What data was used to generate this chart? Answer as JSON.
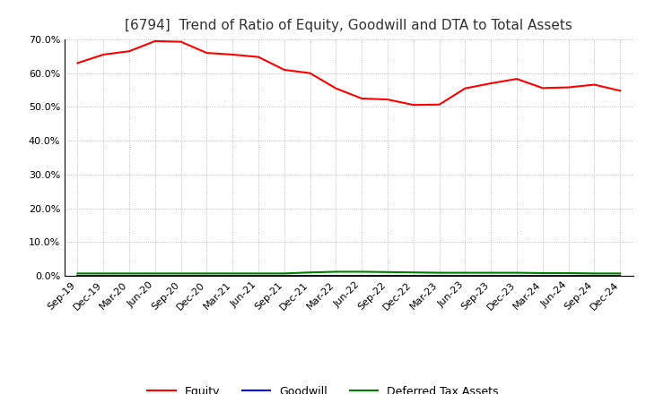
{
  "title": "[6794]  Trend of Ratio of Equity, Goodwill and DTA to Total Assets",
  "xlabel_labels": [
    "Sep-19",
    "Dec-19",
    "Mar-20",
    "Jun-20",
    "Sep-20",
    "Dec-20",
    "Mar-21",
    "Jun-21",
    "Sep-21",
    "Dec-21",
    "Mar-22",
    "Jun-22",
    "Sep-22",
    "Dec-22",
    "Mar-23",
    "Jun-23",
    "Sep-23",
    "Dec-23",
    "Mar-24",
    "Jun-24",
    "Sep-24",
    "Dec-24"
  ],
  "equity": [
    0.63,
    0.655,
    0.665,
    0.695,
    0.693,
    0.66,
    0.655,
    0.648,
    0.61,
    0.6,
    0.555,
    0.525,
    0.522,
    0.506,
    0.507,
    0.555,
    0.57,
    0.583,
    0.556,
    0.558,
    0.566,
    0.548
  ],
  "goodwill": [
    0.0,
    0.0,
    0.0,
    0.0,
    0.0,
    0.0,
    0.0,
    0.0,
    0.0,
    0.0,
    0.0,
    0.0,
    0.0,
    0.0,
    0.0,
    0.0,
    0.0,
    0.0,
    0.0,
    0.0,
    0.0,
    0.0
  ],
  "dta": [
    0.007,
    0.007,
    0.007,
    0.007,
    0.007,
    0.007,
    0.007,
    0.007,
    0.007,
    0.01,
    0.012,
    0.012,
    0.011,
    0.01,
    0.009,
    0.009,
    0.009,
    0.009,
    0.008,
    0.008,
    0.007,
    0.007
  ],
  "equity_color": "#FF0000",
  "goodwill_color": "#0000FF",
  "dta_color": "#008000",
  "ylim": [
    0.0,
    0.7
  ],
  "yticks": [
    0.0,
    0.1,
    0.2,
    0.3,
    0.4,
    0.5,
    0.6,
    0.7
  ],
  "bg_color": "#FFFFFF",
  "grid_color": "#AAAAAA",
  "title_fontsize": 11,
  "tick_fontsize": 8,
  "legend_entries": [
    "Equity",
    "Goodwill",
    "Deferred Tax Assets"
  ]
}
